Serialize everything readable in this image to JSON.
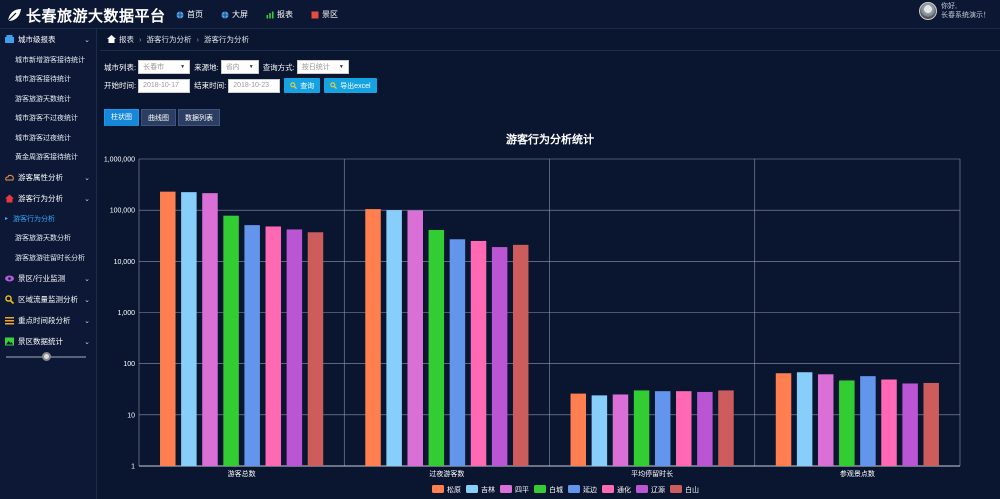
{
  "header": {
    "title": "长春旅游大数据平台",
    "nav": [
      {
        "label": "首页",
        "icon": "globe-icon",
        "color": "#4aa3f0"
      },
      {
        "label": "大屏",
        "icon": "globe-icon",
        "color": "#4aa3f0"
      },
      {
        "label": "报表",
        "icon": "bar-chart-icon",
        "color": "#3ccf3c"
      },
      {
        "label": "景区",
        "icon": "scenic-icon",
        "color": "#e84c3d"
      }
    ],
    "user": {
      "greeting": "你好,",
      "name": "长春系统演示！"
    }
  },
  "sidebar": {
    "groups": [
      {
        "label": "城市级报表",
        "icon": "city-report-icon",
        "color": "#3fa0f2",
        "expanded": true,
        "items": [
          "城市新增游客接待统计",
          "城市游客接待统计",
          "游客旅游天数统计",
          "城市游客不过夜统计",
          "城市游客过夜统计",
          "黄金周游客接待统计"
        ]
      },
      {
        "label": "游客属性分析",
        "icon": "cloud-icon",
        "color": "#f2994a",
        "expanded": false,
        "items": []
      },
      {
        "label": "游客行为分析",
        "icon": "home-icon",
        "color": "#e63b3b",
        "expanded": true,
        "items": [
          "游客行为分析",
          "游客旅游天数分析",
          "游客旅游驻留时长分析"
        ],
        "active_item": "游客行为分析"
      },
      {
        "label": "景区/行业监测",
        "icon": "eye-icon",
        "color": "#b05cd6",
        "expanded": false,
        "items": []
      },
      {
        "label": "区域流量监测分析",
        "icon": "search-icon",
        "color": "#f5c518",
        "expanded": false,
        "items": []
      },
      {
        "label": "重点时间段分析",
        "icon": "list-icon",
        "color": "#f5a623",
        "expanded": false,
        "items": []
      },
      {
        "label": "景区数据统计",
        "icon": "image-icon",
        "color": "#3ccf3c",
        "expanded": false,
        "items": []
      }
    ]
  },
  "breadcrumb": [
    "报表",
    "游客行为分析",
    "游客行为分析"
  ],
  "filters": {
    "city_label": "城市列表:",
    "city_value": "长春市",
    "source_label": "来源地:",
    "source_value": "省内",
    "mode_label": "查询方式:",
    "mode_value": "按日统计",
    "start_label": "开始时间:",
    "start_value": "2018-10-17",
    "end_label": "结束时间:",
    "end_value": "2018-10-23",
    "query_button": "查询",
    "export_button": "导出excel"
  },
  "tabs": [
    "柱状图",
    "曲线图",
    "数据列表"
  ],
  "chart_data": {
    "type": "bar",
    "title": "游客行为分析统计",
    "scale": "log",
    "ylim": [
      1,
      1000000
    ],
    "yticks": [
      "1",
      "10",
      "100",
      "1,000",
      "10,000",
      "100,000",
      "1,000,000"
    ],
    "categories": [
      "游客总数",
      "过夜游客数",
      "平均停留时长",
      "参观景点数"
    ],
    "legend_position": "bottom",
    "grid": true,
    "series": [
      {
        "name": "松原",
        "color": "#ff7f50",
        "values": [
          230000,
          105000,
          26,
          65
        ]
      },
      {
        "name": "吉林",
        "color": "#87cefa",
        "values": [
          225000,
          100000,
          24,
          68
        ]
      },
      {
        "name": "四平",
        "color": "#da70d6",
        "values": [
          215000,
          98000,
          25,
          62
        ]
      },
      {
        "name": "白城",
        "color": "#32cd32",
        "values": [
          78000,
          41000,
          30,
          47
        ]
      },
      {
        "name": "延边",
        "color": "#6495ed",
        "values": [
          51000,
          27000,
          29,
          57
        ]
      },
      {
        "name": "通化",
        "color": "#ff69b4",
        "values": [
          48000,
          25000,
          29,
          49
        ]
      },
      {
        "name": "辽源",
        "color": "#ba55d3",
        "values": [
          42000,
          19000,
          28,
          41
        ]
      },
      {
        "name": "白山",
        "color": "#cd5c5c",
        "values": [
          37000,
          21000,
          30,
          42
        ]
      }
    ]
  }
}
